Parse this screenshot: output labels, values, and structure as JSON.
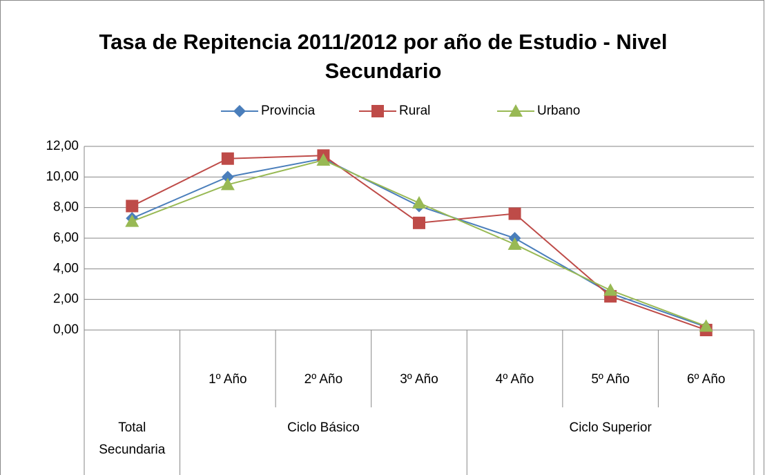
{
  "chart_data": {
    "type": "line",
    "title": "Tasa de Repitencia 2011/2012 por año de Estudio - Nivel Secundario",
    "categories": [
      null,
      "1º Año",
      "2º Año",
      "3º Año",
      "4º Año",
      "5º Año",
      "6º Año"
    ],
    "category_groups": [
      {
        "label": "Total Secundaria",
        "span": 1
      },
      {
        "label": "Ciclo Básico",
        "span": 3
      },
      {
        "label": "Ciclo Superior",
        "span": 3
      }
    ],
    "series": [
      {
        "name": "Provincia",
        "color": "#4a7ebb",
        "marker": "diamond",
        "values": [
          7.3,
          10.0,
          11.2,
          8.1,
          6.0,
          2.4,
          0.2
        ]
      },
      {
        "name": "Rural",
        "color": "#be4b48",
        "marker": "square",
        "values": [
          8.1,
          11.2,
          11.4,
          7.0,
          7.6,
          2.2,
          0.0
        ]
      },
      {
        "name": "Urbano",
        "color": "#98b954",
        "marker": "triangle",
        "values": [
          7.1,
          9.5,
          11.1,
          8.3,
          5.6,
          2.6,
          0.25
        ]
      }
    ],
    "ylim": [
      0,
      12
    ],
    "yticks": [
      {
        "value": 0,
        "label": "0,00"
      },
      {
        "value": 2,
        "label": "2,00"
      },
      {
        "value": 4,
        "label": "4,00"
      },
      {
        "value": 6,
        "label": "6,00"
      },
      {
        "value": 8,
        "label": "8,00"
      },
      {
        "value": 10,
        "label": "10,00"
      },
      {
        "value": 12,
        "label": "12,00"
      }
    ],
    "grid": true,
    "legend": "top"
  }
}
